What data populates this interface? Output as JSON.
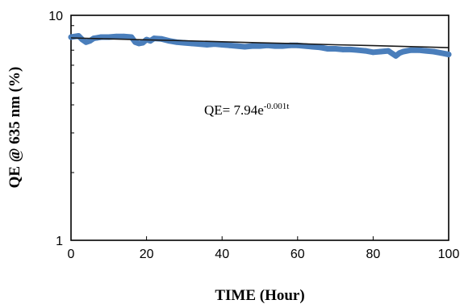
{
  "chart_data": {
    "type": "scatter",
    "xlabel": "TIME (Hour)",
    "ylabel": "QE @ 635 nm (%)",
    "xlim": [
      0,
      100
    ],
    "ylim": [
      1,
      10
    ],
    "yscale": "log",
    "grid": false,
    "x_ticks": [
      "0",
      "20",
      "40",
      "60",
      "80",
      "100"
    ],
    "y_ticks": [
      "1",
      "10"
    ],
    "colors": {
      "data": "#4a7ebb",
      "fit": "#1a1a1a"
    },
    "series": [
      {
        "x": [
          0,
          2,
          3,
          4,
          5,
          6,
          7,
          8,
          10,
          12,
          14,
          16,
          17,
          18,
          19,
          20,
          21,
          22,
          24,
          26,
          28,
          30,
          32,
          34,
          36,
          38,
          40,
          42,
          44,
          46,
          48,
          50,
          52,
          54,
          56,
          58,
          60,
          62,
          64,
          66,
          68,
          70,
          72,
          74,
          76,
          78,
          80,
          82,
          84,
          86,
          87,
          88,
          90,
          92,
          94,
          96,
          98,
          100
        ],
        "y": [
          8.0,
          8.1,
          7.8,
          7.6,
          7.7,
          7.9,
          7.95,
          8.0,
          8.0,
          8.05,
          8.05,
          8.0,
          7.6,
          7.5,
          7.55,
          7.8,
          7.7,
          7.9,
          7.85,
          7.7,
          7.6,
          7.55,
          7.5,
          7.45,
          7.4,
          7.45,
          7.4,
          7.35,
          7.3,
          7.25,
          7.3,
          7.3,
          7.35,
          7.3,
          7.3,
          7.35,
          7.35,
          7.3,
          7.25,
          7.2,
          7.1,
          7.1,
          7.05,
          7.05,
          7.0,
          6.95,
          6.85,
          6.9,
          6.95,
          6.6,
          6.8,
          6.9,
          7.0,
          7.0,
          6.95,
          6.9,
          6.8,
          6.7
        ]
      },
      {
        "x": [
          0,
          10,
          20,
          30,
          40,
          50,
          60,
          70,
          80,
          90,
          100
        ],
        "y": [
          7.94,
          7.86,
          7.78,
          7.71,
          7.63,
          7.55,
          7.48,
          7.4,
          7.33,
          7.26,
          7.18
        ]
      }
    ],
    "annotations": [
      {
        "text": "QE= 7.94e",
        "sup": "-0.001t",
        "x": 55,
        "y": 3.65
      }
    ]
  }
}
